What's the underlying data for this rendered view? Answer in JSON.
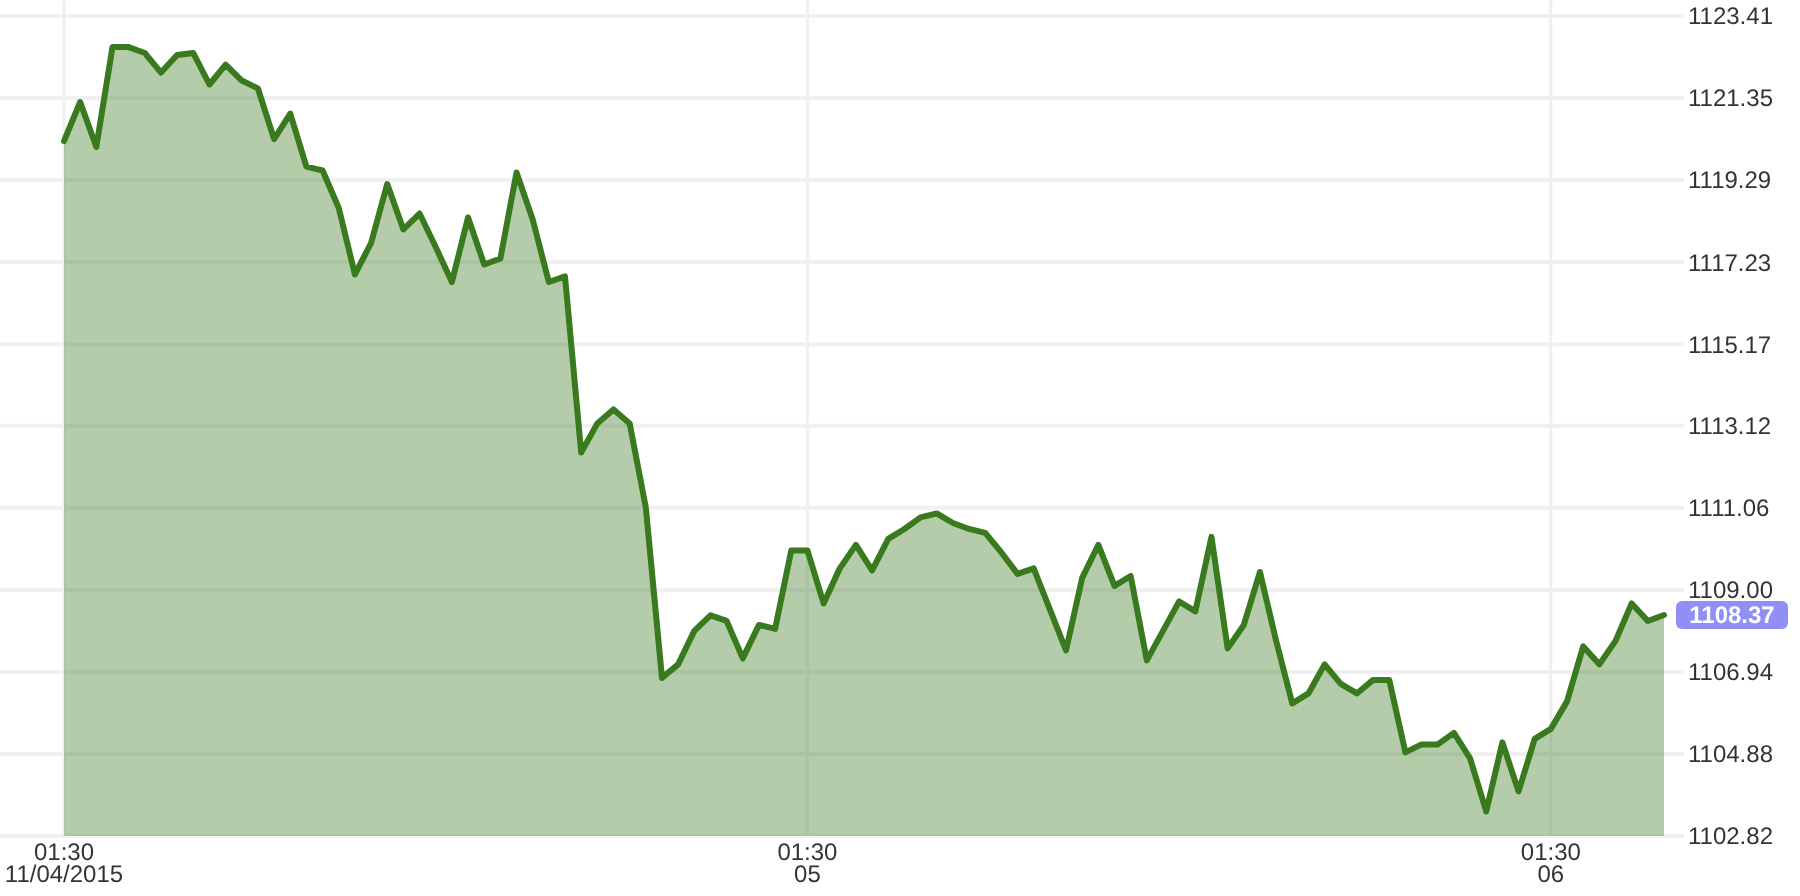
{
  "chart_data": {
    "type": "area",
    "categories": [
      "01:30\n11/04/2015",
      null,
      null,
      null,
      null,
      null,
      null,
      null,
      null,
      null,
      null,
      null,
      null,
      null,
      null,
      null,
      null,
      null,
      null,
      null,
      null,
      null,
      null,
      null,
      null,
      null,
      null,
      null,
      null,
      null,
      null,
      null,
      null,
      null,
      null,
      null,
      null,
      null,
      null,
      null,
      null,
      null,
      null,
      null,
      null,
      null,
      "01:30\n05",
      null,
      null,
      null,
      null,
      null,
      null,
      null,
      null,
      null,
      null,
      null,
      null,
      null,
      null,
      null,
      null,
      null,
      null,
      null,
      null,
      null,
      null,
      null,
      null,
      null,
      null,
      null,
      null,
      null,
      null,
      null,
      null,
      null,
      null,
      null,
      null,
      null,
      null,
      null,
      null,
      null,
      null,
      null,
      null,
      null,
      "01:30\n06",
      null,
      null,
      null,
      null,
      null,
      null,
      null
    ],
    "series": [
      {
        "color": "#3a7a1e",
        "values": [
          1120.27,
          1121.25,
          1120.12,
          1122.63,
          1122.63,
          1122.48,
          1121.99,
          1122.43,
          1122.48,
          1121.69,
          1122.19,
          1121.79,
          1121.59,
          1120.32,
          1120.96,
          1119.63,
          1119.53,
          1118.59,
          1116.92,
          1117.71,
          1119.19,
          1118.05,
          1118.45,
          1117.61,
          1116.73,
          1118.35,
          1117.17,
          1117.32,
          1119.48,
          1118.3,
          1116.73,
          1116.87,
          1112.45,
          1113.18,
          1113.53,
          1113.18,
          1111.07,
          1106.79,
          1107.13,
          1107.97,
          1108.36,
          1108.22,
          1107.28,
          1108.12,
          1108.02,
          1109.99,
          1109.99,
          1108.66,
          1109.54,
          1110.13,
          1109.49,
          1110.28,
          1110.53,
          1110.82,
          1110.92,
          1110.68,
          1110.53,
          1110.43,
          1109.94,
          1109.4,
          1109.54,
          1108.51,
          1107.48,
          1109.3,
          1110.13,
          1109.1,
          1109.35,
          1107.23,
          1107.97,
          1108.71,
          1108.46,
          1110.33,
          1107.53,
          1108.12,
          1109.45,
          1107.72,
          1106.15,
          1106.4,
          1107.13,
          1106.64,
          1106.4,
          1106.74,
          1106.74,
          1104.92,
          1105.12,
          1105.12,
          1105.41,
          1104.77,
          1103.44,
          1105.17,
          1103.94,
          1105.26,
          1105.51,
          1106.2,
          1107.58,
          1107.13,
          1107.72,
          1108.66,
          1108.22,
          1108.37
        ],
        "value_labels": [
          null,
          null,
          null,
          null,
          null,
          null,
          null,
          null,
          null,
          null,
          null,
          null,
          null,
          null,
          null,
          null,
          null,
          null,
          null,
          null,
          null,
          null,
          null,
          null,
          null,
          null,
          null,
          null,
          null,
          null,
          null,
          null,
          null,
          null,
          null,
          null,
          null,
          null,
          null,
          null,
          null,
          null,
          null,
          null,
          null,
          null,
          null,
          null,
          null,
          null,
          null,
          null,
          null,
          null,
          null,
          null,
          null,
          null,
          null,
          null,
          null,
          null,
          null,
          null,
          null,
          null,
          null,
          null,
          null,
          null,
          null,
          null,
          null,
          null,
          null,
          null,
          null,
          null,
          null,
          null,
          null,
          null,
          null,
          null,
          null,
          null,
          null,
          null,
          null,
          null,
          null,
          null,
          null,
          null,
          null,
          null,
          null,
          null,
          null,
          "1108.37"
        ]
      }
    ],
    "ylim": [
      1102.82,
      1123.41
    ],
    "yticks": [
      1102.82,
      1104.88,
      1106.94,
      "1109.00",
      1111.06,
      1113.12,
      1115.17,
      1117.23,
      1119.29,
      1121.35,
      1123.41
    ],
    "grid": true
  }
}
